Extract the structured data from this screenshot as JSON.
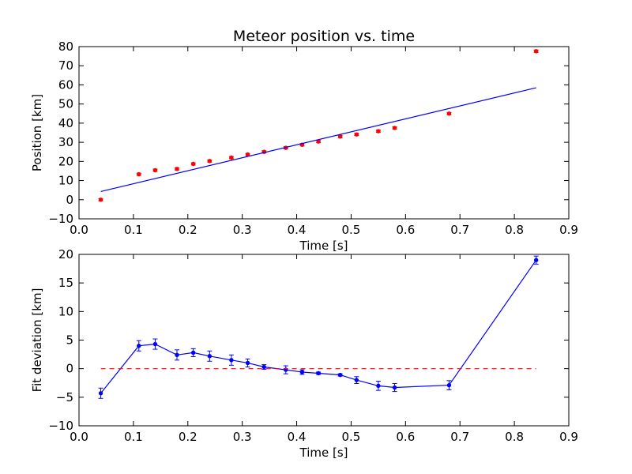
{
  "chart_data": [
    {
      "type": "scatter",
      "title": "Meteor position vs. time",
      "xlabel": "Time [s]",
      "ylabel": "Position [km]",
      "xlim": [
        0.0,
        0.9
      ],
      "ylim": [
        -10,
        80
      ],
      "xticks": [
        "0.0",
        "0.1",
        "0.2",
        "0.3",
        "0.4",
        "0.5",
        "0.6",
        "0.7",
        "0.8",
        "0.9"
      ],
      "yticks": [
        "−10",
        "0",
        "10",
        "20",
        "30",
        "40",
        "50",
        "60",
        "70",
        "80"
      ],
      "grid": false,
      "series": [
        {
          "kind": "points-with-errorbars",
          "color": "#ff0000",
          "x": [
            0.04,
            0.11,
            0.14,
            0.18,
            0.21,
            0.24,
            0.28,
            0.31,
            0.34,
            0.38,
            0.41,
            0.44,
            0.48,
            0.51,
            0.55,
            0.58,
            0.68,
            0.84
          ],
          "y": [
            0.0,
            13.3,
            15.4,
            16.1,
            18.7,
            20.2,
            22.0,
            23.6,
            25.0,
            27.1,
            28.7,
            30.4,
            33.0,
            34.1,
            35.8,
            37.5,
            45.0,
            77.6
          ],
          "yerr": [
            0.6,
            0.6,
            0.6,
            0.6,
            0.6,
            0.6,
            0.6,
            0.6,
            0.6,
            0.6,
            0.6,
            0.6,
            0.6,
            0.6,
            0.6,
            0.6,
            0.6,
            0.6
          ]
        },
        {
          "kind": "line",
          "color": "#0000ff",
          "x": [
            0.04,
            0.84
          ],
          "y": [
            4.3,
            58.5
          ]
        }
      ]
    },
    {
      "type": "line",
      "xlabel": "Time [s]",
      "ylabel": "Fit deviation [km]",
      "xlim": [
        0.0,
        0.9
      ],
      "ylim": [
        -10,
        20
      ],
      "xticks": [
        "0.0",
        "0.1",
        "0.2",
        "0.3",
        "0.4",
        "0.5",
        "0.6",
        "0.7",
        "0.8",
        "0.9"
      ],
      "yticks": [
        "−10",
        "−5",
        "0",
        "5",
        "10",
        "15",
        "20"
      ],
      "grid": false,
      "series": [
        {
          "kind": "line-with-errorbars",
          "color": "#0000ff",
          "x": [
            0.04,
            0.11,
            0.14,
            0.18,
            0.21,
            0.24,
            0.28,
            0.31,
            0.34,
            0.38,
            0.41,
            0.44,
            0.48,
            0.51,
            0.55,
            0.58,
            0.68,
            0.84
          ],
          "y": [
            -4.3,
            4.0,
            4.3,
            2.4,
            2.8,
            2.2,
            1.5,
            1.0,
            0.3,
            -0.2,
            -0.6,
            -0.8,
            -1.1,
            -2.0,
            -3.0,
            -3.3,
            -2.9,
            19.0
          ],
          "yerr": [
            0.9,
            0.9,
            0.9,
            0.9,
            0.7,
            0.9,
            0.9,
            0.7,
            0.4,
            0.7,
            0.4,
            0.2,
            0.2,
            0.6,
            0.8,
            0.7,
            0.8,
            0.7
          ]
        },
        {
          "kind": "dashed-line",
          "color": "#ff0000",
          "x": [
            0.04,
            0.84
          ],
          "y": [
            0,
            0
          ]
        }
      ]
    }
  ]
}
